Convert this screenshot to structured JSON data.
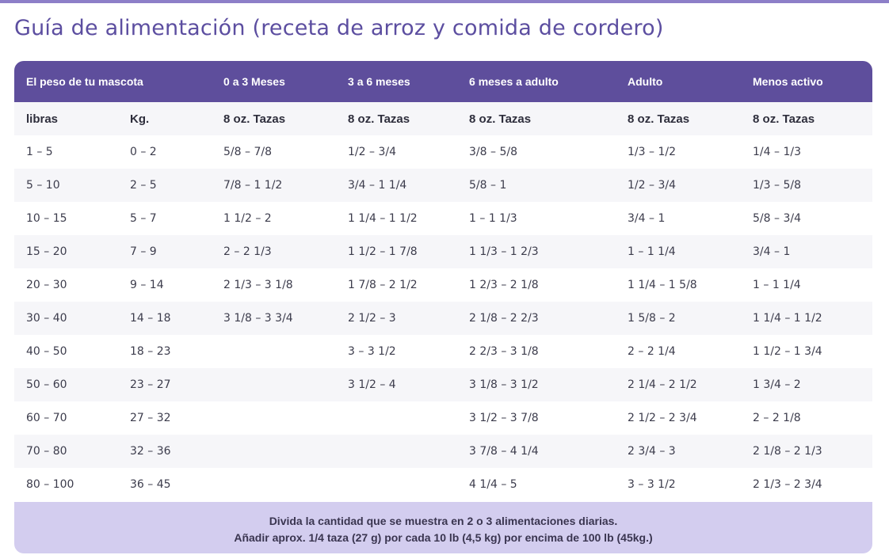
{
  "title": "Guía de alimentación (receta de arroz y comida de cordero)",
  "columns": [
    "El peso de tu mascota",
    "",
    "0 a 3 Meses",
    "3 a 6 meses",
    "6 meses a adulto",
    "Adulto",
    "Menos activo"
  ],
  "units": [
    "libras",
    "Kg.",
    "8 oz. Tazas",
    "8 oz. Tazas",
    "8 oz. Tazas",
    "8 oz. Tazas",
    "8 oz. Tazas"
  ],
  "rows": [
    [
      "1 – 5",
      "0 – 2",
      "5/8 – 7/8",
      "1/2 – 3/4",
      "3/8 – 5/8",
      "1/3 – 1/2",
      "1/4 – 1/3"
    ],
    [
      "5 – 10",
      "2 – 5",
      "7/8 – 1 1/2",
      "3/4 – 1 1/4",
      "5/8 – 1",
      "1/2 – 3/4",
      "1/3 – 5/8"
    ],
    [
      "10 – 15",
      "5 – 7",
      "1 1/2 – 2",
      "1 1/4 – 1 1/2",
      "1 – 1 1/3",
      "3/4 – 1",
      "5/8 – 3/4"
    ],
    [
      "15 – 20",
      "7 – 9",
      "2 – 2 1/3",
      "1 1/2 – 1 7/8",
      "1 1/3 – 1 2/3",
      "1 – 1 1/4",
      "3/4 – 1"
    ],
    [
      "20 – 30",
      "9 – 14",
      "2 1/3 – 3 1/8",
      "1 7/8 – 2 1/2",
      "1 2/3 – 2 1/8",
      "1 1/4 – 1 5/8",
      "1 – 1 1/4"
    ],
    [
      "30 – 40",
      "14 – 18",
      "3 1/8 – 3 3/4",
      "2 1/2 – 3",
      "2 1/8  – 2 2/3",
      "1 5/8 – 2",
      "1 1/4 – 1 1/2"
    ],
    [
      "40 – 50",
      "18 – 23",
      "",
      "3 – 3 1/2",
      "2 2/3 – 3 1/8",
      "2 – 2 1/4",
      "1 1/2 – 1 3/4"
    ],
    [
      "50 – 60",
      "23 – 27",
      "",
      "3 1/2 – 4",
      "3 1/8 – 3 1/2",
      "2 1/4 – 2 1/2",
      "1 3/4 – 2"
    ],
    [
      "60 – 70",
      "27 – 32",
      "",
      "",
      "3 1/2 – 3 7/8",
      "2 1/2 – 2 3/4",
      "2 – 2 1/8"
    ],
    [
      "70 – 80",
      "32 – 36",
      "",
      "",
      "3 7/8 – 4 1/4",
      "2 3/4 – 3",
      "2 1/8 – 2 1/3"
    ],
    [
      "80 – 100",
      "36 – 45",
      "",
      "",
      "4 1/4 – 5",
      "3 – 3 1/2",
      "2 1/3 – 2 3/4"
    ]
  ],
  "footer": {
    "line1": "Divida la cantidad que se muestra en 2 o 3 alimentaciones diarias.",
    "line2": "Añadir aprox. 1/4 taza (27 g) por cada 10 lb (4,5 kg) por encima de 100 lb (45kg.)"
  },
  "colors": {
    "header_bg": "#5e4e9c",
    "title": "#5c4ea0",
    "footer_bg": "#d3cdef",
    "stripe": "#f6f6f9"
  }
}
